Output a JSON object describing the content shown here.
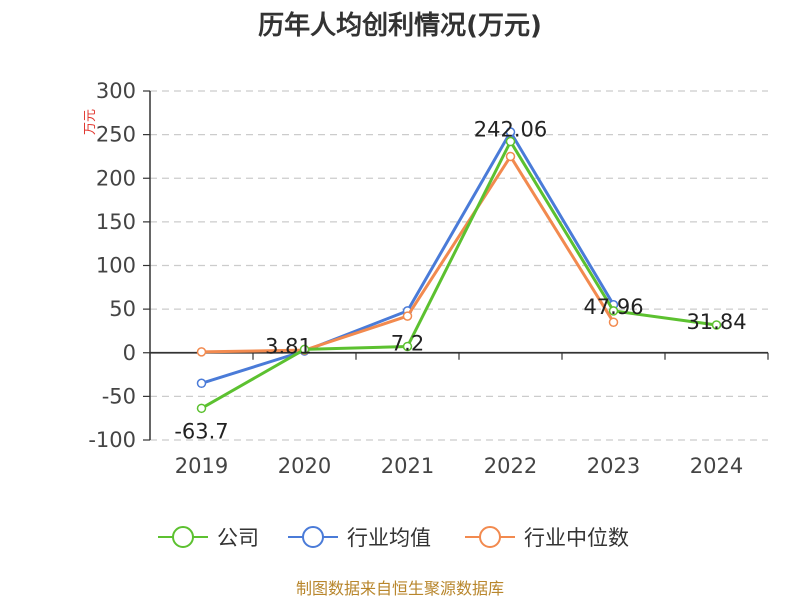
{
  "chart_data": {
    "type": "line",
    "title": "历年人均创利情况(万元)",
    "ylabel": "万元",
    "categories": [
      "2019",
      "2020",
      "2021",
      "2022",
      "2023",
      "2024"
    ],
    "ylim": [
      -100,
      300
    ],
    "yticks": [
      -100,
      -50,
      0,
      50,
      100,
      150,
      200,
      250,
      300
    ],
    "grid": true,
    "legend_position": "bottom",
    "series": [
      {
        "name": "公司",
        "color": "#5cc130",
        "values": [
          -63.7,
          3.81,
          7.2,
          242.06,
          47.96,
          31.84
        ],
        "labels": [
          "-63.7",
          "3.81",
          "7.2",
          "242.06",
          "47.96",
          "31.84"
        ]
      },
      {
        "name": "行业均值",
        "color": "#4a7bd8",
        "values": [
          -35,
          2,
          48,
          253,
          55,
          null
        ]
      },
      {
        "name": "行业中位数",
        "color": "#f28a4f",
        "values": [
          1,
          3,
          42,
          225,
          35,
          null
        ]
      }
    ]
  },
  "footer": {
    "source": "制图数据来自恒生聚源数据库"
  }
}
